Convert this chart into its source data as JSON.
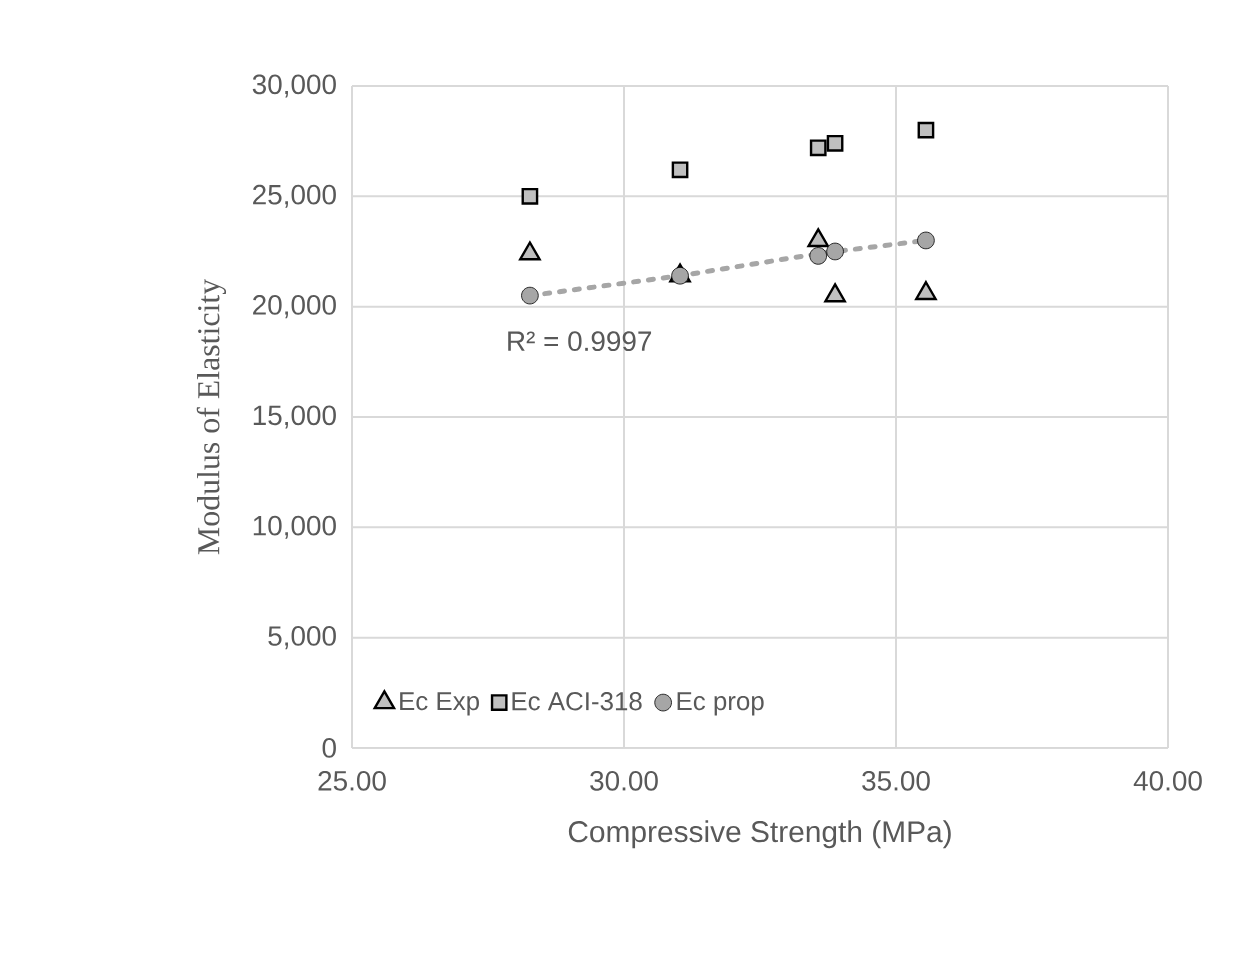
{
  "chart_data": {
    "type": "scatter",
    "xlabel": "Compressive Strength (MPa)",
    "ylabel": "Modulus of Elasticity",
    "xlim": [
      25,
      40
    ],
    "xticks": [
      {
        "value": 25,
        "label": "25.00"
      },
      {
        "value": 30,
        "label": "30.00"
      },
      {
        "value": 35,
        "label": "35.00"
      },
      {
        "value": 40,
        "label": "40.00"
      }
    ],
    "ylim": [
      0,
      30000
    ],
    "yticks": [
      0,
      {
        "value": 5000,
        "label": "5,000"
      },
      {
        "value": 10000,
        "label": "10,000"
      },
      {
        "value": 15000,
        "label": "15,000"
      },
      {
        "value": 20000,
        "label": "20,000"
      },
      {
        "value": 25000,
        "label": "25,000"
      },
      {
        "value": 30000,
        "label": "30,000"
      }
    ],
    "grid": true,
    "legend": "bottom left",
    "annotations": [
      "R² = 0.9997"
    ],
    "series": [
      {
        "name": "Ec Exp",
        "color": "#bfbfbf",
        "marker": "triangle",
        "x": [
          28.27,
          31.03,
          33.57,
          33.88,
          35.55
        ],
        "values": [
          22400,
          21400,
          23000,
          20500,
          20600
        ]
      },
      {
        "name": "Ec ACI-318",
        "color": "#bfbfbf",
        "marker": "square",
        "x": [
          28.27,
          31.03,
          33.57,
          33.88,
          35.55
        ],
        "values": [
          25000,
          26200,
          27200,
          27400,
          28000
        ]
      },
      {
        "name": "Ec prop",
        "color": "#a6a6a6",
        "marker": "circle",
        "x": [
          28.27,
          31.03,
          33.57,
          33.88,
          35.55
        ],
        "values": [
          20500,
          21400,
          22300,
          22500,
          23000
        ]
      },
      {
        "type": "line",
        "color": "#a6a6a6",
        "line_style": "dotted",
        "x": [
          28.27,
          31.03,
          33.57,
          35.55
        ],
        "values": [
          20500,
          21400,
          22400,
          23000
        ]
      }
    ]
  }
}
